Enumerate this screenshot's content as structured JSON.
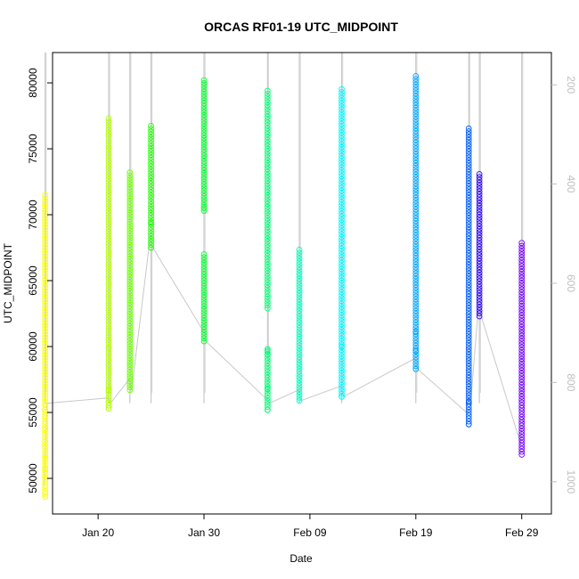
{
  "chart_data": {
    "type": "scatter",
    "title": "ORCAS RF01-19 UTC_MIDPOINT",
    "xlabel": "Date",
    "ylabel": "UTC_MIDPOINT",
    "ylim": [
      47300,
      82300
    ],
    "xlim_days": [
      -4.3,
      42.8
    ],
    "y_ticks": [
      50000,
      55000,
      60000,
      65000,
      70000,
      75000,
      80000
    ],
    "y_tick_labels": [
      "50000",
      "55000",
      "60000",
      "65000",
      "70000",
      "75000",
      "80000"
    ],
    "x_ticks": [
      "Jan 20",
      "Jan 30",
      "Feb 09",
      "Feb 19",
      "Feb 29"
    ],
    "x_tick_labels": [
      "Jan 20",
      "Jan 30",
      "Feb 09",
      "Feb 19",
      "Feb 29"
    ],
    "right_axis": {
      "tick_labels": [
        "200",
        "400",
        "600",
        "800",
        "1000"
      ],
      "ylim_reversed": [
        1065,
        135
      ],
      "color": "#c0c0c0"
    },
    "flights": [
      {
        "date": "2016-01-15",
        "ymin": 48600,
        "ymax": 71600,
        "color": "#ffff00",
        "outliers": [
          48600,
          50700,
          51500,
          53700,
          55200
        ]
      },
      {
        "date": "2016-01-21",
        "ymin": 55300,
        "ymax": 77500,
        "color": "#b5ff00",
        "outliers": [
          55300,
          56700,
          58600,
          59900
        ]
      },
      {
        "date": "2016-01-23",
        "ymin": 56700,
        "ymax": 73300,
        "color": "#6aff00",
        "outliers": []
      },
      {
        "date": "2016-01-25",
        "ymin": 67500,
        "ymax": 76800,
        "color": "#20ff00",
        "outliers": [
          67500,
          69400
        ]
      },
      {
        "date": "2016-01-30",
        "ymin": 60400,
        "ymax": 80200,
        "color": "#00ff2a",
        "outliers": [
          70500
        ]
      },
      {
        "date": "2016-02-05",
        "ymin": 55200,
        "ymax": 79600,
        "color": "#00ff75",
        "outliers": [
          55200,
          56800,
          59400,
          59700
        ]
      },
      {
        "date": "2016-02-08",
        "ymin": 55900,
        "ymax": 67400,
        "color": "#00ffbf",
        "outliers": []
      },
      {
        "date": "2016-02-12",
        "ymin": 56200,
        "ymax": 79600,
        "color": "#00f5ff",
        "outliers": [
          56200,
          60000
        ]
      },
      {
        "date": "2016-02-19",
        "ymin": 58300,
        "ymax": 80600,
        "color": "#00aaff",
        "outliers": [
          58300,
          59700,
          61100
        ]
      },
      {
        "date": "2016-02-24",
        "ymin": 54100,
        "ymax": 76700,
        "color": "#0060ff",
        "outliers": [
          54100,
          55800
        ]
      },
      {
        "date": "2016-02-25",
        "ymin": 62300,
        "ymax": 73200,
        "color": "#2a00ff",
        "outliers": []
      },
      {
        "date": "2016-02-29",
        "ymin": 51800,
        "ymax": 68000,
        "color": "#7500ff",
        "outliers": []
      }
    ]
  }
}
